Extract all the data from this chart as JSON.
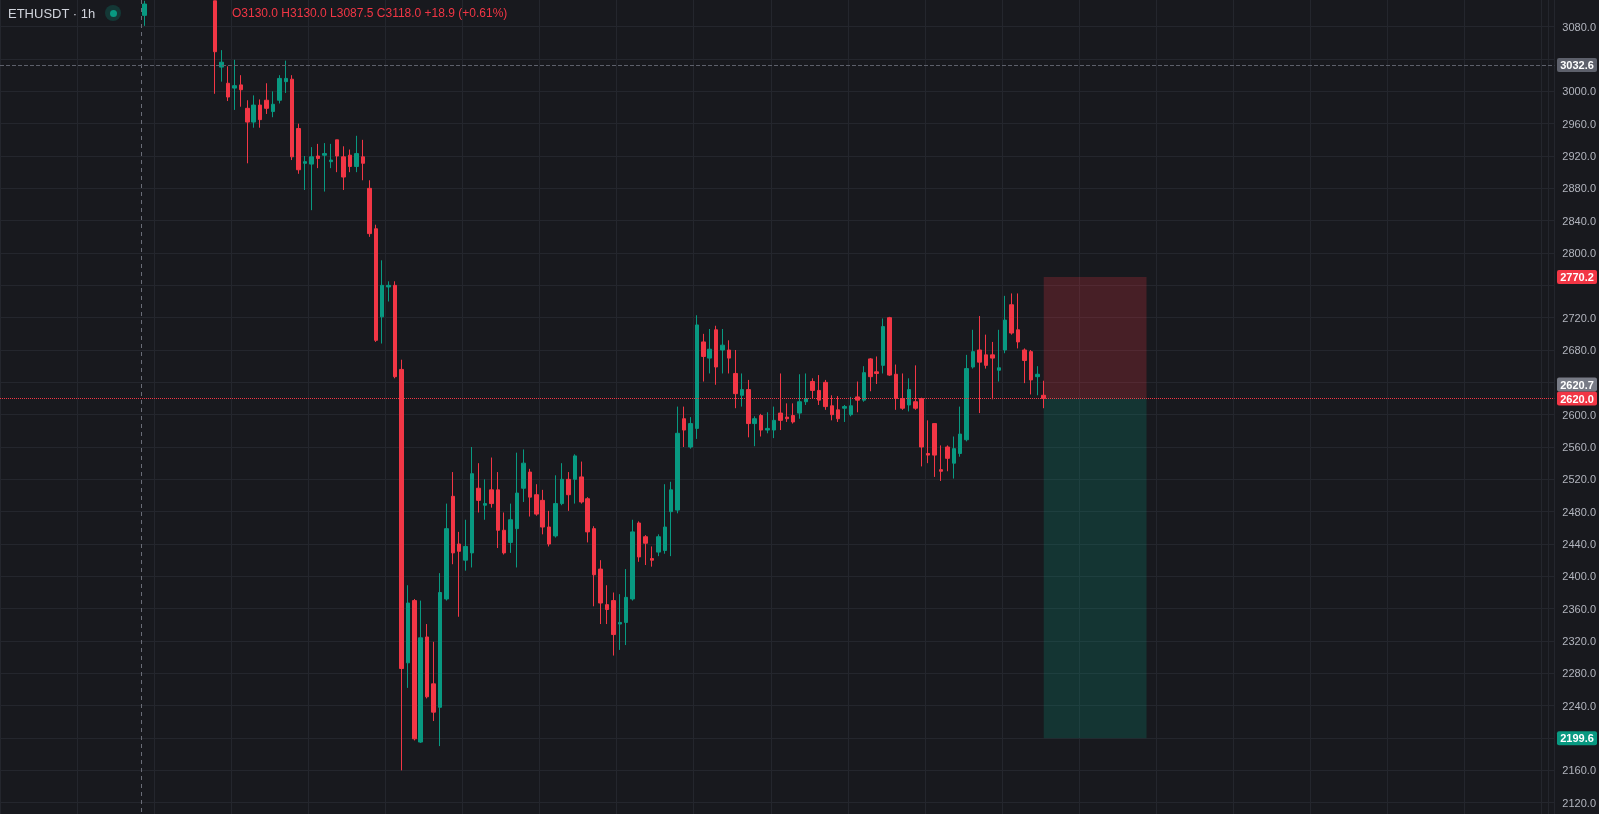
{
  "chart_data": {
    "type": "candlestick",
    "title": "ETHUSDT · 1h",
    "annotations": [
      "O3130.0 H3130.0 L3087.5 C3118.0 +18.9 (+0.61%)",
      {
        "text": "2770.2",
        "y": 2770.2
      },
      {
        "text": "2620.7",
        "y": 2620.7
      },
      {
        "text": "2199.6",
        "y": 2199.6
      }
    ],
    "categories": [
      null,
      null,
      null,
      null,
      null,
      null,
      null,
      null,
      null,
      null,
      null,
      null,
      null,
      null,
      null,
      null,
      null,
      null,
      null,
      null,
      null,
      null,
      null,
      null,
      null,
      null,
      null,
      null,
      null,
      null,
      null,
      null,
      null,
      null,
      null,
      null,
      null,
      null,
      null,
      null,
      null,
      null,
      null,
      null,
      null,
      null,
      null,
      null,
      null,
      null,
      null,
      null,
      null,
      null,
      null,
      null,
      null,
      null,
      null,
      null,
      null,
      null,
      null,
      null,
      null,
      null,
      null,
      null,
      null,
      null,
      null,
      null,
      null,
      null,
      null,
      null,
      null,
      null,
      null,
      null,
      null,
      null,
      null,
      null,
      null,
      null,
      null,
      null,
      null,
      null,
      null,
      null,
      null,
      null,
      null,
      null,
      null,
      null,
      null,
      null,
      null,
      null,
      null,
      null,
      null,
      null,
      null,
      null,
      null,
      null,
      null,
      null,
      null,
      null,
      null,
      null,
      null,
      null,
      null,
      null,
      null,
      null,
      null,
      null,
      null,
      null,
      null,
      null,
      null,
      null,
      null,
      null,
      null,
      null,
      null,
      null,
      null,
      null,
      null,
      null,
      null,
      null,
      null,
      null,
      null,
      null,
      null,
      null,
      null,
      null,
      null,
      null,
      null,
      null,
      null,
      null,
      null,
      null,
      null,
      null,
      null,
      null,
      null,
      null,
      null,
      null,
      null,
      null,
      null,
      null,
      null,
      null,
      null,
      null,
      null,
      null,
      null,
      null,
      null,
      null,
      null,
      null,
      null,
      null,
      null,
      null,
      null,
      null,
      null,
      null,
      null,
      null,
      null,
      null,
      null,
      null,
      null,
      null,
      null,
      null,
      null,
      null,
      null,
      null,
      null,
      null,
      null,
      null,
      null,
      null,
      null,
      null,
      null,
      null,
      null,
      null,
      null,
      null,
      null,
      null,
      null,
      null,
      null,
      null,
      null,
      null,
      null,
      null,
      null,
      null,
      null,
      null,
      null,
      null,
      null,
      null,
      null,
      null,
      null,
      null,
      null,
      null
    ],
    "ohlc": [
      null,
      null,
      null,
      null,
      null,
      null,
      null,
      null,
      null,
      null,
      null,
      null,
      null,
      null,
      null,
      null,
      null,
      null,
      null,
      null,
      null,
      null,
      [
        3094,
        3112,
        3081,
        3108
      ],
      null,
      null,
      null,
      null,
      null,
      null,
      null,
      null,
      null,
      null,
      [
        3112,
        3112,
        2997,
        3049
      ],
      [
        3030,
        3051,
        3012,
        3036
      ],
      [
        3010,
        3031,
        2988,
        2993
      ],
      [
        3004,
        3039,
        2977,
        3007
      ],
      [
        3008,
        3020,
        2981,
        3002
      ],
      [
        2979,
        2989,
        2911,
        2962
      ],
      [
        2962,
        2995,
        2955,
        2983
      ],
      [
        2983,
        2990,
        2955,
        2965
      ],
      [
        2989,
        3010,
        2972,
        2979
      ],
      [
        2975,
        3000,
        2968,
        2984
      ],
      [
        2989,
        3020,
        2985,
        3016
      ],
      [
        3012,
        3038,
        2998,
        3016
      ],
      [
        3015,
        3020,
        2915,
        2919
      ],
      [
        2954,
        2960,
        2898,
        2903
      ],
      [
        2911,
        2920,
        2878,
        2913
      ],
      [
        2910,
        2931,
        2853,
        2919
      ],
      [
        2920,
        2935,
        2905,
        2917
      ],
      [
        2921,
        2936,
        2876,
        2923
      ],
      [
        2913,
        2935,
        2905,
        2915
      ],
      [
        2940,
        2940,
        2900,
        2920
      ],
      [
        2919,
        2932,
        2878,
        2894
      ],
      [
        2921,
        2928,
        2900,
        2907
      ],
      [
        2907,
        2945,
        2900,
        2923
      ],
      [
        2919,
        2940,
        2890,
        2911
      ],
      [
        2880,
        2890,
        2820,
        2824
      ],
      [
        2830,
        2835,
        2690,
        2692
      ],
      [
        2721,
        2791,
        2688,
        2760
      ],
      [
        2758,
        2765,
        2740,
        2760
      ],
      [
        2760,
        2765,
        2645,
        2647
      ],
      [
        2656,
        2668,
        2160,
        2286
      ],
      [
        2293,
        2389,
        2262,
        2367
      ],
      [
        2370,
        2372,
        2197,
        2199
      ],
      [
        2195,
        2370,
        2194,
        2324
      ],
      [
        2325,
        2341,
        2249,
        2251
      ],
      [
        2267,
        2319,
        2221,
        2232
      ],
      [
        2238,
        2404,
        2190,
        2380
      ],
      [
        2372,
        2490,
        2370,
        2459
      ],
      [
        2499,
        2529,
        2415,
        2429
      ],
      [
        2440,
        2455,
        2350,
        2431
      ],
      [
        2420,
        2470,
        2407,
        2437
      ],
      [
        2429,
        2560,
        2411,
        2527
      ],
      [
        2509,
        2540,
        2479,
        2494
      ],
      [
        2488,
        2520,
        2470,
        2490
      ],
      [
        2507,
        2547,
        2485,
        2490
      ],
      [
        2507,
        2529,
        2435,
        2457
      ],
      [
        2457,
        2479,
        2427,
        2429
      ],
      [
        2442,
        2490,
        2429,
        2470
      ],
      [
        2459,
        2553,
        2411,
        2503
      ],
      [
        2509,
        2557,
        2492,
        2540
      ],
      [
        2529,
        2533,
        2474,
        2498
      ],
      [
        2501,
        2514,
        2475,
        2477
      ],
      [
        2494,
        2507,
        2452,
        2461
      ],
      [
        2461,
        2481,
        2437,
        2440
      ],
      [
        2450,
        2525,
        2448,
        2490
      ],
      [
        2490,
        2540,
        2488,
        2520
      ],
      [
        2520,
        2529,
        2481,
        2501
      ],
      [
        2520,
        2551,
        2490,
        2549
      ],
      [
        2523,
        2542,
        2490,
        2492
      ],
      [
        2496,
        2498,
        2442,
        2455
      ],
      [
        2459,
        2462,
        2363,
        2402
      ],
      [
        2409,
        2420,
        2341,
        2367
      ],
      [
        2365,
        2389,
        2341,
        2359
      ],
      [
        2370,
        2380,
        2302,
        2328
      ],
      [
        2341,
        2378,
        2309,
        2343
      ],
      [
        2343,
        2409,
        2315,
        2374
      ],
      [
        2372,
        2470,
        2370,
        2455
      ],
      [
        2466,
        2468,
        2418,
        2424
      ],
      [
        2449,
        2451,
        2414,
        2441
      ],
      [
        2422,
        2437,
        2412,
        2420
      ],
      [
        2430,
        2452,
        2425,
        2449
      ],
      [
        2432,
        2514,
        2428,
        2461
      ],
      [
        2480,
        2517,
        2425,
        2507
      ],
      [
        2482,
        2610,
        2478,
        2577
      ],
      [
        2595,
        2610,
        2560,
        2581
      ],
      [
        2560,
        2597,
        2558,
        2589
      ],
      [
        2583,
        2723,
        2570,
        2711
      ],
      [
        2690,
        2700,
        2641,
        2672
      ],
      [
        2670,
        2706,
        2651,
        2681
      ],
      [
        2705,
        2710,
        2637,
        2659
      ],
      [
        2680,
        2706,
        2651,
        2686
      ],
      [
        2680,
        2692,
        2651,
        2670
      ],
      [
        2651,
        2680,
        2608,
        2626
      ],
      [
        2624,
        2651,
        2610,
        2631
      ],
      [
        2631,
        2643,
        2572,
        2589
      ],
      [
        2589,
        2598,
        2561,
        2595
      ],
      [
        2599,
        2601,
        2573,
        2581
      ],
      [
        2581,
        2603,
        2577,
        2583
      ],
      [
        2581,
        2610,
        2571,
        2593
      ],
      [
        2602,
        2651,
        2581,
        2593
      ],
      [
        2597,
        2614,
        2591,
        2595
      ],
      [
        2599,
        2614,
        2589,
        2591
      ],
      [
        2602,
        2650,
        2595,
        2616
      ],
      [
        2616,
        2651,
        2612,
        2620
      ],
      [
        2641,
        2645,
        2620,
        2630
      ],
      [
        2630,
        2649,
        2612,
        2618
      ],
      [
        2640,
        2643,
        2606,
        2610
      ],
      [
        2611,
        2624,
        2593,
        2600
      ],
      [
        2606,
        2623,
        2591,
        2595
      ],
      [
        2608,
        2612,
        2591,
        2610
      ],
      [
        2600,
        2622,
        2598,
        2611
      ],
      [
        2622,
        2641,
        2603,
        2618
      ],
      [
        2618,
        2660,
        2616,
        2652
      ],
      [
        2669,
        2670,
        2629,
        2647
      ],
      [
        2653,
        2672,
        2638,
        2651
      ],
      [
        2661,
        2719,
        2651,
        2709
      ],
      [
        2720,
        2721,
        2648,
        2649
      ],
      [
        2650,
        2662,
        2606,
        2620
      ],
      [
        2620,
        2651,
        2606,
        2608
      ],
      [
        2612,
        2645,
        2604,
        2631
      ],
      [
        2616,
        2661,
        2606,
        2608
      ],
      [
        2620,
        2621,
        2536,
        2560
      ],
      [
        2552,
        2593,
        2540,
        2550
      ],
      [
        2589,
        2589,
        2523,
        2550
      ],
      [
        2532,
        2562,
        2518,
        2530
      ],
      [
        2560,
        2562,
        2530,
        2546
      ],
      [
        2540,
        2573,
        2521,
        2558
      ],
      [
        2552,
        2610,
        2548,
        2576
      ],
      [
        2569,
        2674,
        2567,
        2657
      ],
      [
        2659,
        2705,
        2657,
        2678
      ],
      [
        2680,
        2722,
        2602,
        2665
      ],
      [
        2674,
        2699,
        2657,
        2661
      ],
      [
        2674,
        2690,
        2619,
        2670
      ],
      [
        2655,
        2705,
        2641,
        2658
      ],
      [
        2680,
        2747,
        2676,
        2717
      ],
      [
        2736,
        2750,
        2699,
        2701
      ],
      [
        2705,
        2750,
        2682,
        2690
      ],
      [
        2680,
        2682,
        2639,
        2667
      ],
      [
        2678,
        2680,
        2625,
        2643
      ],
      [
        2647,
        2660,
        2624,
        2650
      ],
      [
        2624,
        2642,
        2608,
        2620
      ],
      null,
      null,
      null,
      null,
      null,
      null,
      null,
      null,
      null,
      null,
      null,
      null,
      null,
      null,
      null,
      null,
      null,
      null,
      null,
      null,
      null,
      null,
      null,
      null,
      null,
      null,
      null,
      null,
      null,
      null,
      null,
      null,
      null,
      null,
      null,
      null,
      null,
      null,
      null,
      null,
      null,
      null,
      null,
      null,
      null,
      null,
      null,
      null,
      null,
      null,
      null,
      null,
      null,
      null,
      null,
      null,
      null,
      null,
      null,
      null,
      null,
      null,
      null,
      null,
      null,
      null,
      null,
      null,
      null,
      null,
      null,
      null,
      null,
      null,
      null,
      null,
      null,
      null,
      null
    ],
    "colors": [
      null,
      null,
      null,
      null,
      null,
      null,
      null,
      null,
      null,
      null,
      null,
      null,
      null,
      null,
      null,
      null,
      null,
      null,
      null,
      null,
      null,
      null,
      "#089981",
      null,
      null,
      null,
      null,
      null,
      null,
      null,
      null,
      null,
      null,
      "#f23645",
      "#089981",
      "#f23645",
      "#089981",
      "#f23645",
      "#f23645",
      "#089981",
      "#f23645",
      "#f23645",
      "#089981",
      "#089981",
      "#089981",
      "#f23645",
      "#f23645",
      "#089981",
      "#089981",
      "#f23645",
      "#089981",
      "#089981",
      "#f23645",
      "#f23645",
      "#f23645",
      "#089981",
      "#f23645",
      "#f23645",
      "#f23645",
      "#089981",
      "#089981",
      "#f23645",
      "#f23645",
      "#089981",
      "#f23645",
      "#089981",
      "#f23645",
      "#f23645",
      "#089981",
      "#089981",
      "#f23645",
      "#f23645",
      "#089981",
      "#089981",
      "#f23645",
      "#089981",
      "#f23645",
      "#f23645",
      "#f23645",
      "#089981",
      "#089981",
      "#089981",
      "#f23645",
      "#f23645",
      "#f23645",
      "#f23645",
      "#089981",
      "#089981",
      "#f23645",
      "#089981",
      "#f23645",
      "#f23645",
      "#f23645",
      "#f23645",
      "#f23645",
      "#f23645",
      "#089981",
      "#089981",
      "#089981",
      "#f23645",
      "#f23645",
      "#f23645",
      "#089981",
      "#089981",
      "#089981",
      "#089981",
      "#f23645",
      "#089981",
      "#089981",
      "#f23645",
      "#089981",
      "#f23645",
      "#089981",
      "#f23645",
      "#f23645",
      "#089981",
      "#f23645",
      "#089981",
      "#f23645",
      "#089981",
      "#089981",
      "#f23645",
      "#f23645",
      "#f23645",
      "#089981",
      "#089981",
      "#f23645",
      "#f23645",
      "#f23645",
      "#f23645",
      "#f23645",
      "#089981",
      "#089981",
      "#f23645",
      "#089981",
      "#f23645",
      "#f23645",
      "#089981",
      "#f23645",
      "#f23645",
      "#f23645",
      "#089981",
      "#f23645",
      "#f23645",
      "#f23645",
      "#f23645",
      "#f23645",
      "#f23645",
      "#089981",
      "#089981",
      "#089981",
      "#089981",
      "#f23645",
      "#f23645",
      "#f23645",
      "#089981",
      "#089981",
      "#f23645",
      "#f23645",
      "#f23645",
      "#f23645",
      "#089981",
      "#f23645",
      null,
      null,
      null,
      null,
      null,
      null,
      null,
      null,
      null,
      null,
      null,
      null,
      null,
      null,
      null,
      null,
      null,
      null,
      null,
      null,
      null,
      null,
      null,
      null,
      null,
      null,
      null,
      null,
      null,
      null,
      null,
      null,
      null,
      null,
      null,
      null,
      null,
      null,
      null,
      null,
      null,
      null,
      null,
      null,
      null,
      null,
      null,
      null,
      null,
      null,
      null,
      null,
      null,
      null,
      null,
      null,
      null,
      null,
      null,
      null,
      null,
      null,
      null,
      null,
      null,
      null,
      null,
      null,
      null,
      null,
      null,
      null,
      null,
      null,
      null,
      null,
      null,
      null,
      null
    ],
    "ylim": [
      2106,
      3113
    ],
    "yticks": [
      {
        "value": 2120,
        "label": "2120.0"
      },
      {
        "value": 2160,
        "label": "2160.0"
      },
      {
        "value": 2200,
        "label": null
      },
      {
        "value": 2240,
        "label": "2240.0"
      },
      {
        "value": 2280,
        "label": "2280.0"
      },
      {
        "value": 2320,
        "label": "2320.0"
      },
      {
        "value": 2360,
        "label": "2360.0"
      },
      {
        "value": 2400,
        "label": "2400.0"
      },
      {
        "value": 2440,
        "label": "2440.0"
      },
      {
        "value": 2480,
        "label": "2480.0"
      },
      {
        "value": 2520,
        "label": "2520.0"
      },
      {
        "value": 2560,
        "label": "2560.0"
      },
      {
        "value": 2600,
        "label": "2600.0"
      },
      {
        "value": 2640,
        "label": null
      },
      {
        "value": 2680,
        "label": "2680.0"
      },
      {
        "value": 2720,
        "label": "2720.0"
      },
      {
        "value": 2760,
        "label": null
      },
      {
        "value": 2800,
        "label": "2800.0"
      },
      {
        "value": 2840,
        "label": "2840.0"
      },
      {
        "value": 2880,
        "label": "2880.0"
      },
      {
        "value": 2920,
        "label": "2920.0"
      },
      {
        "value": 2960,
        "label": "2960.0"
      },
      {
        "value": 3000,
        "label": "3000.0"
      },
      {
        "value": 3040,
        "label": null
      },
      {
        "value": 3080,
        "label": "3080.0"
      }
    ],
    "grid": true,
    "tick_labels": "y",
    "ref_lines": [
      {
        "axis": "y",
        "value": 3032.6,
        "label": "3032.6",
        "color": "#5d606b",
        "line_style": "dashed"
      },
      {
        "axis": "y",
        "value": 2620.0,
        "label": "2620.0",
        "color": "#f23645",
        "line_style": "dotted"
      }
    ],
    "bands": [
      {
        "axis": "y",
        "from": 2620.7,
        "to": 2770.2,
        "color": "#f23645"
      },
      {
        "axis": "y",
        "from": 2199.6,
        "to": 2620.7,
        "color": "#089981"
      }
    ]
  }
}
